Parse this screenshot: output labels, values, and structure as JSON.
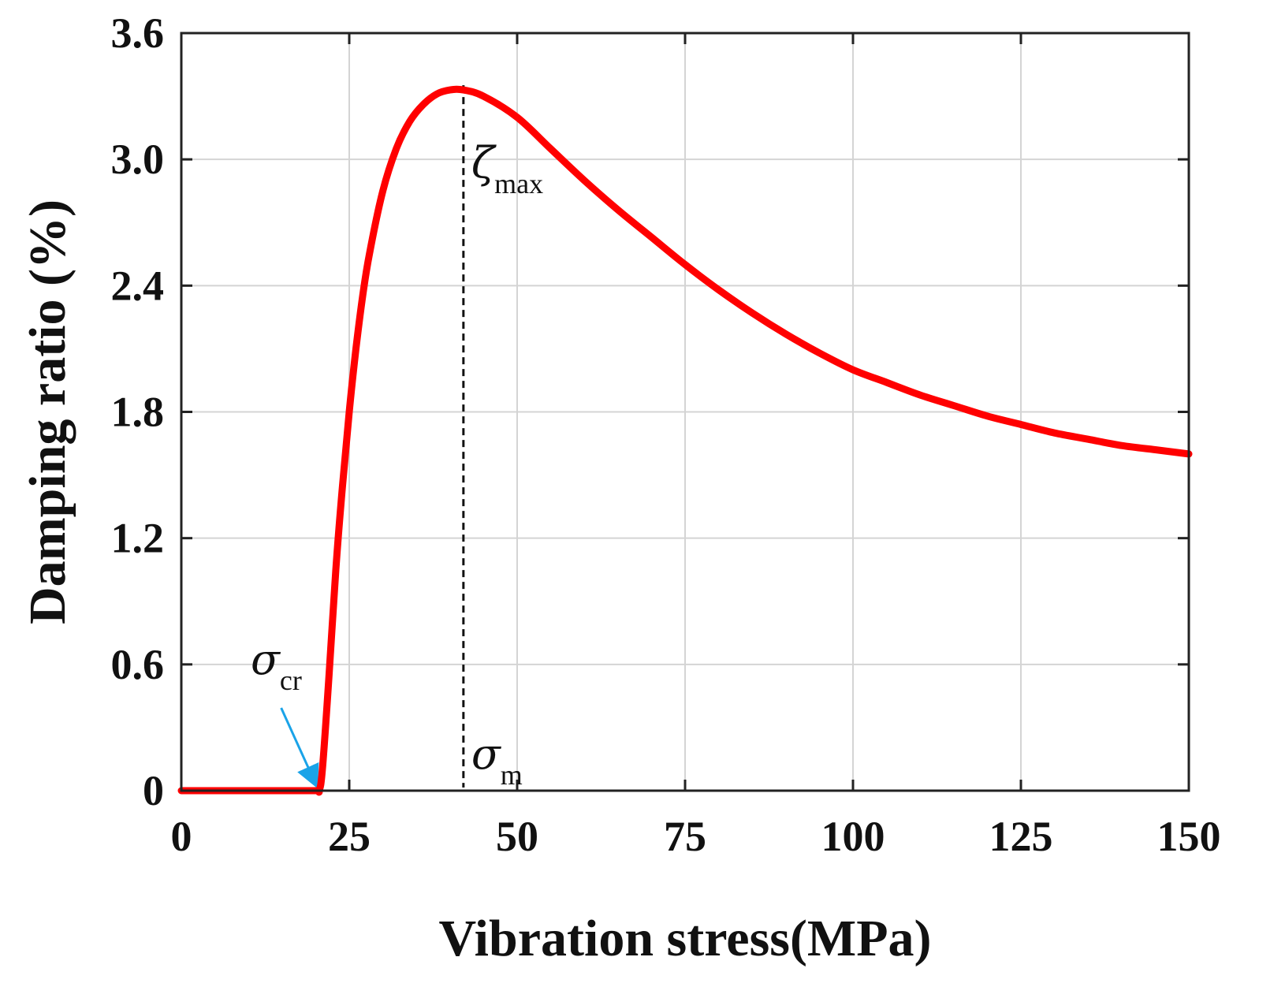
{
  "chart_data": {
    "type": "line",
    "xlabel": "Vibration stress(MPa)",
    "ylabel": "Damping ratio (%)",
    "xlim": [
      0,
      150
    ],
    "ylim": [
      0,
      3.6
    ],
    "x_ticks": [
      "0",
      "25",
      "50",
      "75",
      "100",
      "125",
      "150"
    ],
    "x_tick_values": [
      0,
      25,
      50,
      75,
      100,
      125,
      150
    ],
    "y_ticks": [
      "0",
      "0.6",
      "1.2",
      "1.8",
      "2.4",
      "3.0",
      "3.6"
    ],
    "y_tick_values": [
      0,
      0.6,
      1.2,
      1.8,
      2.4,
      3.0,
      3.6
    ],
    "grid": true,
    "series": [
      {
        "name": "damping ratio",
        "color": "#ff0000",
        "x": [
          0,
          5,
          10,
          15,
          20,
          20.5,
          21,
          22,
          23,
          24,
          25,
          26,
          27,
          28,
          30,
          32,
          34,
          36,
          38,
          40,
          42,
          45,
          50,
          55,
          60,
          65,
          70,
          75,
          80,
          85,
          90,
          95,
          100,
          105,
          110,
          115,
          120,
          125,
          130,
          135,
          140,
          145,
          150
        ],
        "y": [
          0,
          0,
          0,
          0,
          0,
          0,
          0.1,
          0.55,
          1.05,
          1.45,
          1.8,
          2.1,
          2.35,
          2.55,
          2.85,
          3.05,
          3.18,
          3.26,
          3.31,
          3.33,
          3.33,
          3.3,
          3.2,
          3.05,
          2.9,
          2.76,
          2.63,
          2.5,
          2.38,
          2.27,
          2.17,
          2.08,
          2.0,
          1.94,
          1.88,
          1.83,
          1.78,
          1.74,
          1.7,
          1.67,
          1.64,
          1.62,
          1.6
        ]
      }
    ],
    "annotations": {
      "zeta_max": {
        "symbol": "ζ",
        "subscript": "max",
        "x": 42,
        "y": 3.33
      },
      "sigma_m": {
        "symbol": "σ",
        "subscript": "m",
        "x": 42
      },
      "sigma_cr": {
        "symbol": "σ",
        "subscript": "cr",
        "x": 20.5,
        "arrow_color": "#1aa3e8"
      }
    }
  }
}
